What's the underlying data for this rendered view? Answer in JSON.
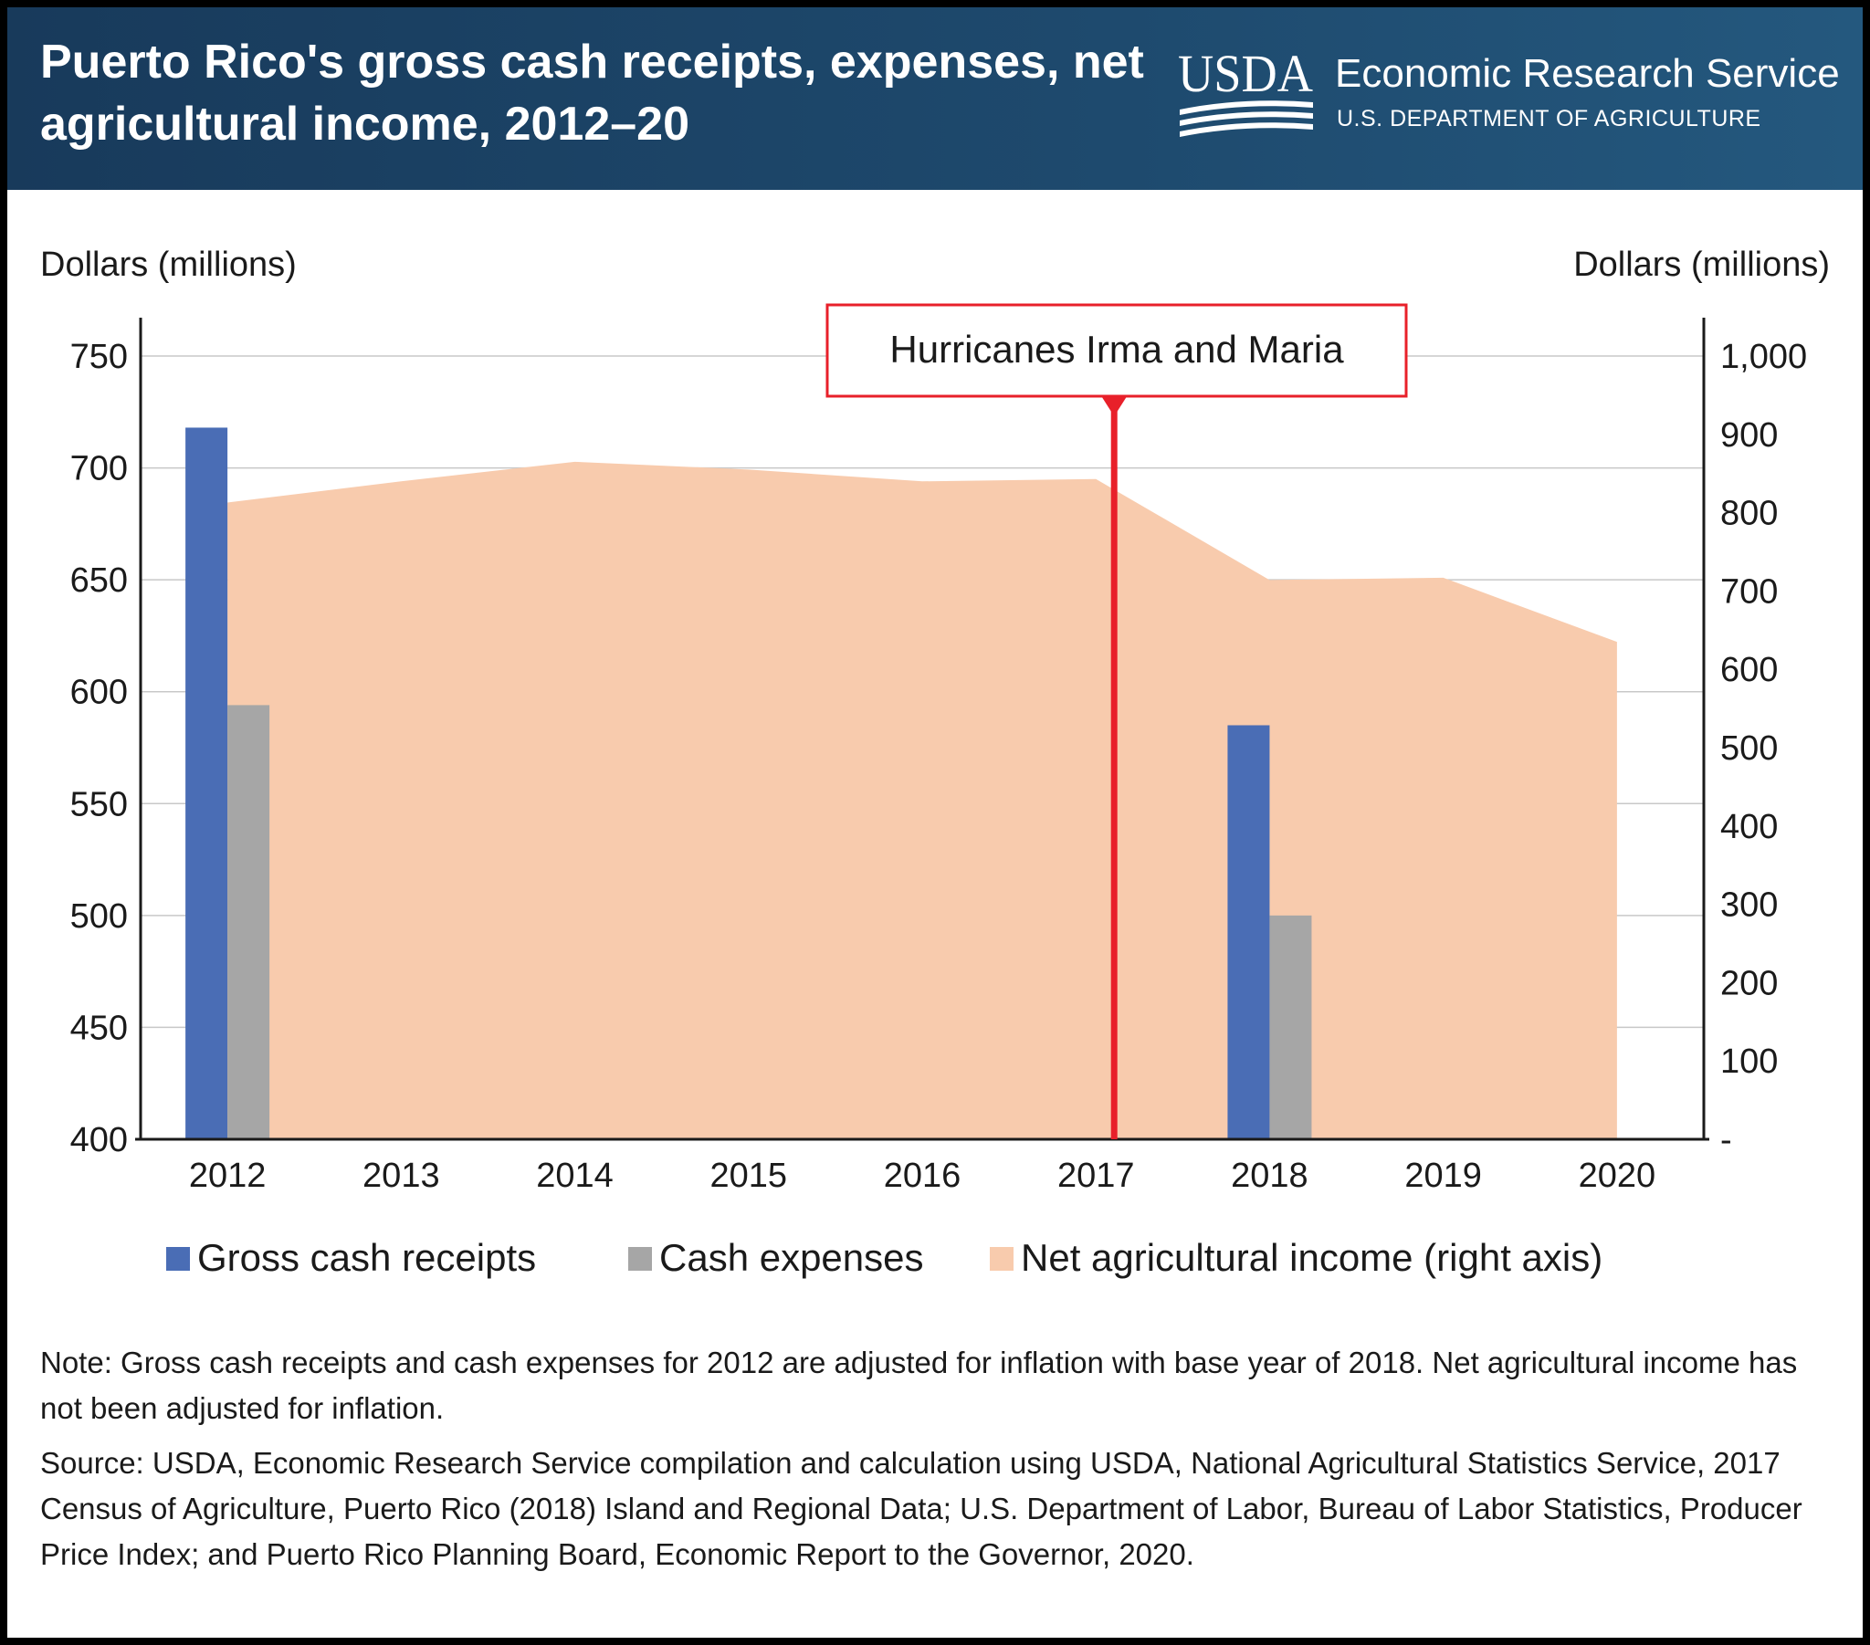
{
  "header": {
    "title": "Puerto Rico's gross cash receipts, expenses, net agricultural income, 2012–20",
    "logo_mark": "USDA",
    "agency": "Economic Research Service",
    "department": "U.S. DEPARTMENT OF AGRICULTURE"
  },
  "chart_data": {
    "type": "bar",
    "categories": [
      "2012",
      "2013",
      "2014",
      "2015",
      "2016",
      "2017",
      "2018",
      "2019",
      "2020"
    ],
    "series": [
      {
        "name": "Gross cash receipts",
        "type": "bar",
        "axis": "left",
        "color": "#4a6db5",
        "values": [
          718,
          null,
          null,
          null,
          null,
          null,
          585,
          null,
          null
        ]
      },
      {
        "name": "Cash expenses",
        "type": "bar",
        "axis": "left",
        "color": "#a6a6a6",
        "values": [
          594,
          null,
          null,
          null,
          null,
          null,
          500,
          null,
          null
        ]
      },
      {
        "name": "Net agricultural income (right axis)",
        "type": "area",
        "axis": "right",
        "color": "#f8cbad",
        "values": [
          813,
          840,
          865,
          855,
          840,
          843,
          714,
          717,
          635
        ]
      }
    ],
    "left_axis": {
      "label": "Dollars (millions)",
      "ylim": [
        400,
        750
      ],
      "ticks": [
        400,
        450,
        500,
        550,
        600,
        650,
        700,
        750
      ],
      "tick_labels": [
        "400",
        "450",
        "500",
        "550",
        "600",
        "650",
        "700",
        "750"
      ]
    },
    "right_axis": {
      "label": "Dollars (millions)",
      "ylim": [
        0,
        1000
      ],
      "ticks": [
        0,
        100,
        200,
        300,
        400,
        500,
        600,
        700,
        800,
        900,
        1000
      ],
      "tick_labels": [
        "-",
        "100",
        "200",
        "300",
        "400",
        "500",
        "600",
        "700",
        "800",
        "900",
        "1,000"
      ]
    },
    "annotation": {
      "text": "Hurricanes Irma and Maria",
      "category": "2017",
      "color": "#e8202a"
    },
    "grid": true,
    "legend": "bottom"
  },
  "footer": {
    "note": "Note: Gross cash receipts and cash expenses for 2012 are adjusted for inflation with base year of 2018. Net agricultural income has not been adjusted for inflation.",
    "source": "Source: USDA, Economic Research Service compilation and calculation using USDA, National Agricultural Statistics Service, 2017 Census of Agriculture, Puerto Rico (2018) Island and Regional Data; U.S. Department of Labor, Bureau of Labor Statistics, Producer Price Index; and Puerto Rico Planning Board, Economic Report to the Governor, 2020."
  }
}
